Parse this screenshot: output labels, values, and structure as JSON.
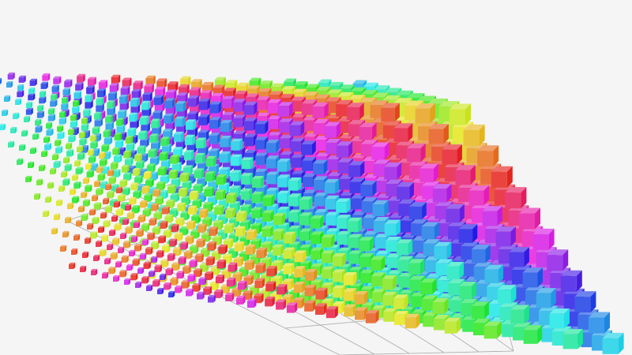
{
  "chart_data": {
    "type": "scatter3D",
    "symbol": "cube",
    "title": "",
    "grid_points": [
      12,
      10,
      12
    ],
    "axis_box": true,
    "grid": true,
    "axis_labels_visible": false,
    "color_mapping": "hue by position",
    "palette": [
      "#e53935",
      "#e8a33a",
      "#d9e33a",
      "#4fe33a",
      "#3ae3d6",
      "#3a7be3",
      "#4a3ae3",
      "#b53ae3",
      "#e33ab0"
    ],
    "background": "#f5f5f5",
    "axis_color": "#aaaaaa"
  }
}
